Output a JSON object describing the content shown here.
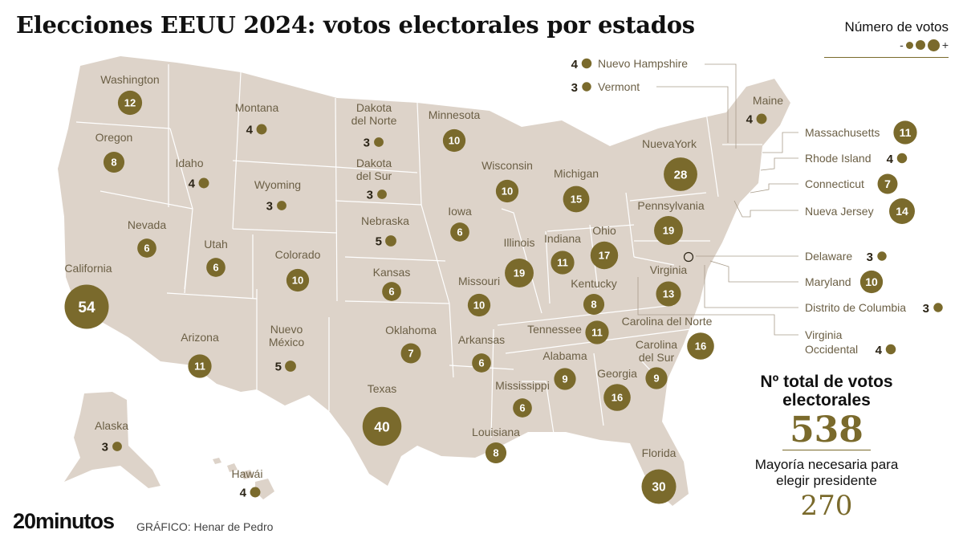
{
  "title": "Elecciones EEUU 2024: votos electorales por estados",
  "legend": {
    "title": "Número de votos",
    "min": "-",
    "max": "+"
  },
  "colors": {
    "accent": "#7a6a2c",
    "land": "#ddd3c9",
    "border": "#ffffff"
  },
  "states": [
    {
      "name": "Washington",
      "votes": 12
    },
    {
      "name": "Oregon",
      "votes": 8
    },
    {
      "name": "California",
      "votes": 54
    },
    {
      "name": "Nevada",
      "votes": 6
    },
    {
      "name": "Idaho",
      "votes": 4
    },
    {
      "name": "Montana",
      "votes": 4
    },
    {
      "name": "Wyoming",
      "votes": 3
    },
    {
      "name": "Utah",
      "votes": 6
    },
    {
      "name": "Arizona",
      "votes": 11
    },
    {
      "name": "Colorado",
      "votes": 10
    },
    {
      "name": "Nuevo México",
      "votes": 5
    },
    {
      "name": "Dakota del Norte",
      "votes": 3
    },
    {
      "name": "Dakota del Sur",
      "votes": 3
    },
    {
      "name": "Nebraska",
      "votes": 5
    },
    {
      "name": "Kansas",
      "votes": 6
    },
    {
      "name": "Oklahoma",
      "votes": 7
    },
    {
      "name": "Texas",
      "votes": 40
    },
    {
      "name": "Minnesota",
      "votes": 10
    },
    {
      "name": "Iowa",
      "votes": 6
    },
    {
      "name": "Missouri",
      "votes": 10
    },
    {
      "name": "Arkansas",
      "votes": 6
    },
    {
      "name": "Louisiana",
      "votes": 8
    },
    {
      "name": "Wisconsin",
      "votes": 10
    },
    {
      "name": "Illinois",
      "votes": 19
    },
    {
      "name": "Michigan",
      "votes": 15
    },
    {
      "name": "Indiana",
      "votes": 11
    },
    {
      "name": "Ohio",
      "votes": 17
    },
    {
      "name": "Kentucky",
      "votes": 8
    },
    {
      "name": "Tennessee",
      "votes": 11
    },
    {
      "name": "Mississippi",
      "votes": 6
    },
    {
      "name": "Alabama",
      "votes": 9
    },
    {
      "name": "Georgia",
      "votes": 16
    },
    {
      "name": "Florida",
      "votes": 30
    },
    {
      "name": "Carolina del Sur",
      "votes": 9
    },
    {
      "name": "Carolina del Norte",
      "votes": 16
    },
    {
      "name": "Virginia",
      "votes": 13
    },
    {
      "name": "Pennsylvania",
      "votes": 19
    },
    {
      "name": "NuevaYork",
      "votes": 28
    },
    {
      "name": "Maine",
      "votes": 4
    },
    {
      "name": "Alaska",
      "votes": 3
    },
    {
      "name": "Hawái",
      "votes": 4
    }
  ],
  "callouts": [
    {
      "name": "Nuevo Hampshire",
      "votes": 4
    },
    {
      "name": "Vermont",
      "votes": 3
    },
    {
      "name": "Massachusetts",
      "votes": 11
    },
    {
      "name": "Rhode Island",
      "votes": 4
    },
    {
      "name": "Connecticut",
      "votes": 7
    },
    {
      "name": "Nueva Jersey",
      "votes": 14
    },
    {
      "name": "Delaware",
      "votes": 3
    },
    {
      "name": "Maryland",
      "votes": 10
    },
    {
      "name": "Distrito de Columbia",
      "votes": 3
    },
    {
      "name": "Virginia Occidental",
      "votes": 4
    }
  ],
  "totals": {
    "label": "Nº total de votos electorales",
    "value": "538",
    "majority_label": "Mayoría necesaria para elegir presidente",
    "majority_value": "270"
  },
  "brand": "20minutos",
  "credit": "GRÁFICO: Henar de Pedro"
}
